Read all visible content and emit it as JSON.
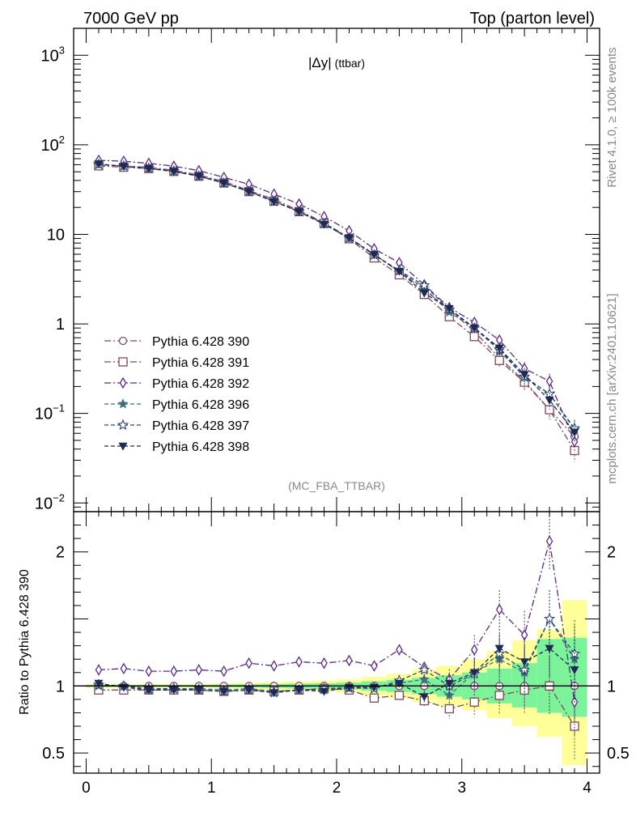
{
  "header": {
    "left": "7000 GeV pp",
    "right": "Top (parton level)"
  },
  "side_text": {
    "rivet": "Rivet 4.1.0, ≥ 100k events",
    "mcplots": "mcplots.cern.ch [arXiv:2401.10621]"
  },
  "watermark": "(MC_FBA_TTBAR)",
  "chart_data": {
    "type": "line",
    "title": "|Δy| (ttbar)",
    "title_main": "|Δy|",
    "title_sub": "(ttbar)",
    "xlabel": "",
    "xlim": [
      -0.1,
      4.1
    ],
    "x_ticks": [
      0,
      1,
      2,
      3,
      4
    ],
    "x_tick_labels": [
      "0",
      "1",
      "2",
      "3",
      "4"
    ],
    "main": {
      "yscale": "log",
      "ylim": [
        0.008,
        2000
      ],
      "y_tick_labels": [
        {
          "value": 0.01,
          "base": "10",
          "exp": "−2"
        },
        {
          "value": 0.1,
          "base": "10",
          "exp": "−1"
        },
        {
          "value": 1,
          "base": "1",
          "exp": ""
        },
        {
          "value": 10,
          "base": "10",
          "exp": ""
        },
        {
          "value": 100,
          "base": "10",
          "exp": "2"
        },
        {
          "value": 1000,
          "base": "10",
          "exp": "3"
        }
      ]
    },
    "ratio": {
      "ylabel": "Ratio to Pythia 6.428 390",
      "ylim": [
        0.35,
        2.3
      ],
      "y_ticks": [
        0.5,
        1,
        2
      ],
      "y_tick_labels": [
        "0.5",
        "1",
        "2"
      ],
      "reference_line": 1
    },
    "x": [
      0.1,
      0.3,
      0.5,
      0.7,
      0.9,
      1.1,
      1.3,
      1.5,
      1.7,
      1.9,
      2.1,
      2.3,
      2.5,
      2.7,
      2.9,
      3.1,
      3.3,
      3.5,
      3.7,
      3.9
    ],
    "bins": [
      0,
      0.2,
      0.4,
      0.6,
      0.8,
      1.0,
      1.2,
      1.4,
      1.6,
      1.8,
      2.0,
      2.2,
      2.4,
      2.6,
      2.8,
      3.0,
      3.2,
      3.4,
      3.6,
      3.8,
      4.0
    ],
    "reference": [
      60,
      58,
      56,
      52,
      46,
      39,
      31,
      24.5,
      18.5,
      13.5,
      9.2,
      6.0,
      3.8,
      2.4,
      1.45,
      0.82,
      0.42,
      0.23,
      0.11,
      0.055
    ],
    "series": [
      {
        "name": "Pythia 6.428 390",
        "color": "#7b4a78",
        "marker": "circle-open",
        "dash": "8,3,2,3",
        "ratio": [
          1.0,
          1.0,
          1.0,
          1.0,
          1.0,
          1.0,
          1.0,
          1.0,
          1.0,
          1.0,
          1.0,
          1.0,
          1.0,
          1.0,
          1.0,
          1.0,
          1.0,
          1.0,
          1.0,
          1.0
        ]
      },
      {
        "name": "Pythia 6.428 391",
        "color": "#7c4a55",
        "marker": "square-open",
        "dash": "8,3,2,3",
        "ratio": [
          0.97,
          0.97,
          0.97,
          0.97,
          0.97,
          0.96,
          0.97,
          0.96,
          0.97,
          0.98,
          0.97,
          0.91,
          0.93,
          0.89,
          0.83,
          0.88,
          0.93,
          0.97,
          1.0,
          0.7
        ]
      },
      {
        "name": "Pythia 6.428 392",
        "color": "#5a2a85",
        "marker": "diamond-open",
        "dash": "8,3,2,3",
        "ratio": [
          1.12,
          1.13,
          1.11,
          1.11,
          1.12,
          1.11,
          1.17,
          1.15,
          1.18,
          1.17,
          1.19,
          1.15,
          1.27,
          1.14,
          1.05,
          1.27,
          1.57,
          1.38,
          2.08,
          0.88
        ]
      },
      {
        "name": "Pythia 6.428 396",
        "color": "#3f6e7c",
        "marker": "star-filled",
        "dash": "5,3",
        "ratio": [
          1.0,
          1.0,
          0.97,
          0.98,
          0.98,
          0.97,
          0.98,
          0.96,
          0.97,
          0.97,
          0.98,
          0.99,
          1.02,
          1.05,
          0.93,
          1.1,
          1.2,
          1.1,
          1.5,
          1.2
        ]
      },
      {
        "name": "Pythia 6.428 397",
        "color": "#2e4a6e",
        "marker": "star-open",
        "dash": "5,3",
        "ratio": [
          1.01,
          1.0,
          0.98,
          0.98,
          0.97,
          0.96,
          0.97,
          0.95,
          0.97,
          0.98,
          0.99,
          0.98,
          1.04,
          1.12,
          1.0,
          1.09,
          1.24,
          1.12,
          1.5,
          1.24
        ]
      },
      {
        "name": "Pythia 6.428 398",
        "color": "#1e2a55",
        "marker": "triangle-down-filled",
        "dash": "5,3",
        "ratio": [
          1.02,
          0.99,
          0.97,
          0.97,
          0.97,
          0.96,
          0.97,
          0.95,
          0.97,
          0.96,
          0.99,
          0.99,
          1.02,
          0.92,
          1.02,
          1.1,
          1.28,
          1.18,
          1.28,
          1.12
        ]
      }
    ],
    "band_yellow": [
      [
        0.985,
        1.015
      ],
      [
        0.985,
        1.015
      ],
      [
        0.985,
        1.015
      ],
      [
        0.985,
        1.015
      ],
      [
        0.985,
        1.015
      ],
      [
        0.98,
        1.02
      ],
      [
        0.975,
        1.025
      ],
      [
        0.97,
        1.03
      ],
      [
        0.965,
        1.035
      ],
      [
        0.96,
        1.04
      ],
      [
        0.95,
        1.05
      ],
      [
        0.93,
        1.07
      ],
      [
        0.91,
        1.09
      ],
      [
        0.88,
        1.12
      ],
      [
        0.85,
        1.15
      ],
      [
        0.82,
        1.2
      ],
      [
        0.76,
        1.26
      ],
      [
        0.7,
        1.34
      ],
      [
        0.62,
        1.42
      ],
      [
        0.41,
        1.64
      ]
    ],
    "band_green": [
      [
        0.992,
        1.008
      ],
      [
        0.992,
        1.008
      ],
      [
        0.992,
        1.008
      ],
      [
        0.992,
        1.008
      ],
      [
        0.992,
        1.008
      ],
      [
        0.99,
        1.01
      ],
      [
        0.988,
        1.012
      ],
      [
        0.985,
        1.015
      ],
      [
        0.982,
        1.018
      ],
      [
        0.98,
        1.02
      ],
      [
        0.975,
        1.025
      ],
      [
        0.965,
        1.035
      ],
      [
        0.955,
        1.045
      ],
      [
        0.94,
        1.06
      ],
      [
        0.92,
        1.08
      ],
      [
        0.9,
        1.1
      ],
      [
        0.87,
        1.13
      ],
      [
        0.84,
        1.17
      ],
      [
        0.8,
        1.35
      ],
      [
        0.77,
        1.36
      ]
    ]
  }
}
